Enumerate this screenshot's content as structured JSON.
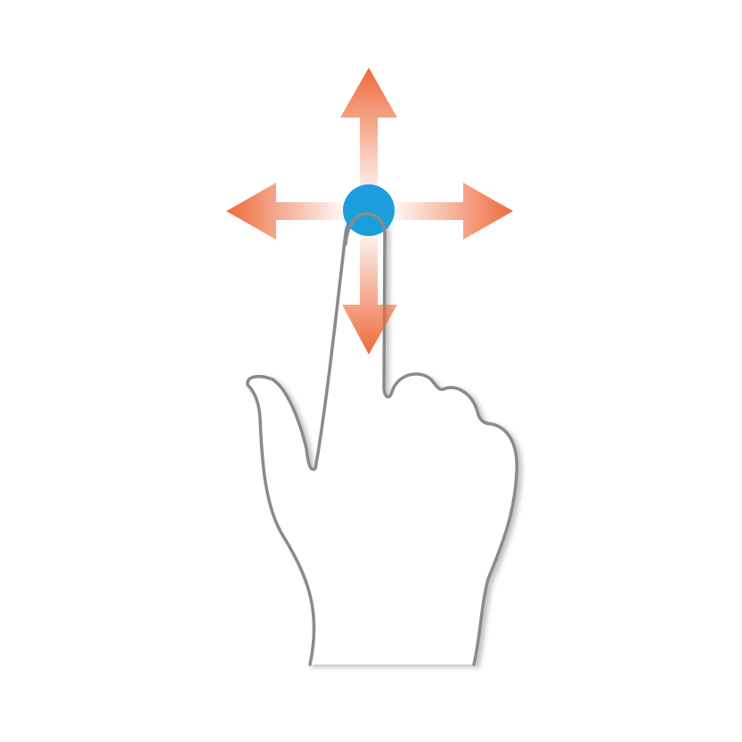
{
  "gesture": {
    "icon": "touch-pan-gesture-icon",
    "directions": [
      "up",
      "right",
      "down",
      "left"
    ]
  },
  "colors": {
    "background": "#ffffff",
    "arrow": "#ee6a3c",
    "touch_point": "#1a9fdc",
    "hand_outline": "#8a8a8c",
    "hand_fill": "#ffffff"
  }
}
